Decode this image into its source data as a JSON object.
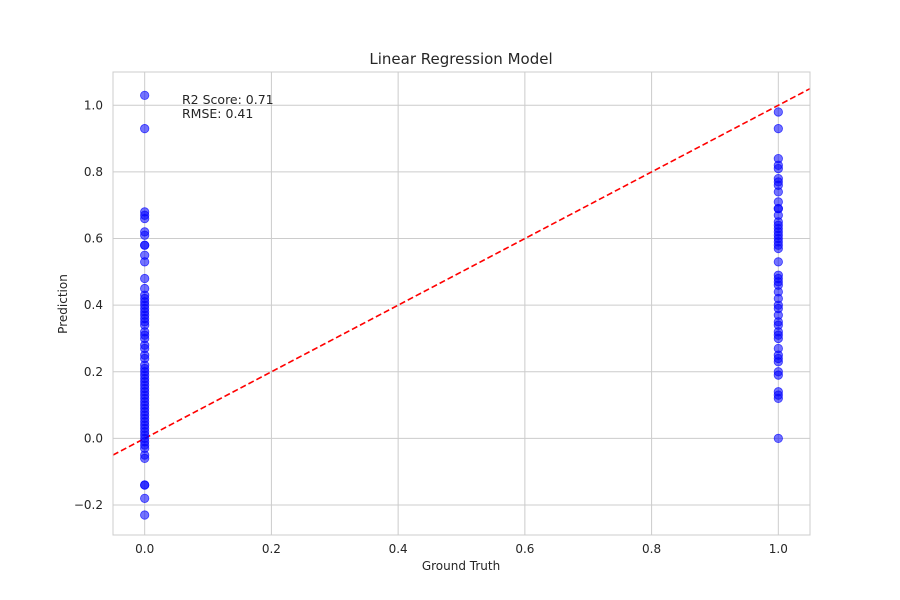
{
  "chart_data": {
    "type": "scatter",
    "title": "Linear Regression Model",
    "xlabel": "Ground Truth",
    "ylabel": "Prediction",
    "xlim": [
      -0.05,
      1.05
    ],
    "ylim": [
      -0.29,
      1.1
    ],
    "x_ticks": [
      0.0,
      0.2,
      0.4,
      0.6,
      0.8,
      1.0
    ],
    "x_tick_labels": [
      "0.0",
      "0.2",
      "0.4",
      "0.6",
      "0.8",
      "1.0"
    ],
    "y_ticks": [
      -0.2,
      0.0,
      0.2,
      0.4,
      0.6,
      0.8,
      1.0
    ],
    "y_tick_labels": [
      "−0.2",
      "0.0",
      "0.2",
      "0.4",
      "0.6",
      "0.8",
      "1.0"
    ],
    "grid": true,
    "point_color": "#0000ff",
    "point_opacity": 0.55,
    "reference_line": {
      "color": "#ff0000",
      "style": "dashed",
      "from": [
        -0.05,
        -0.05
      ],
      "to": [
        1.05,
        1.05
      ]
    },
    "annotations": [
      "R2 Score: 0.71",
      "RMSE: 0.41"
    ],
    "series": [
      {
        "x_value": 0.0,
        "y": [
          1.03,
          0.93,
          0.68,
          0.67,
          0.66,
          0.62,
          0.61,
          0.58,
          0.58,
          0.55,
          0.53,
          0.48,
          0.45,
          0.43,
          0.42,
          0.41,
          0.4,
          0.39,
          0.38,
          0.37,
          0.36,
          0.35,
          0.34,
          0.32,
          0.31,
          0.3,
          0.28,
          0.27,
          0.25,
          0.24,
          0.22,
          0.21,
          0.2,
          0.19,
          0.18,
          0.17,
          0.16,
          0.15,
          0.14,
          0.13,
          0.12,
          0.11,
          0.1,
          0.09,
          0.08,
          0.07,
          0.06,
          0.05,
          0.04,
          0.03,
          0.02,
          0.01,
          0.0,
          -0.01,
          -0.02,
          -0.03,
          -0.05,
          -0.06,
          -0.14,
          -0.14,
          -0.18,
          -0.23
        ]
      },
      {
        "x_value": 1.0,
        "y": [
          0.98,
          0.93,
          0.84,
          0.82,
          0.81,
          0.78,
          0.77,
          0.76,
          0.74,
          0.71,
          0.69,
          0.69,
          0.67,
          0.65,
          0.64,
          0.63,
          0.62,
          0.61,
          0.6,
          0.59,
          0.58,
          0.57,
          0.53,
          0.49,
          0.48,
          0.47,
          0.46,
          0.44,
          0.42,
          0.4,
          0.39,
          0.37,
          0.35,
          0.34,
          0.32,
          0.31,
          0.3,
          0.27,
          0.25,
          0.24,
          0.23,
          0.2,
          0.19,
          0.14,
          0.13,
          0.12,
          0.0
        ]
      }
    ]
  }
}
